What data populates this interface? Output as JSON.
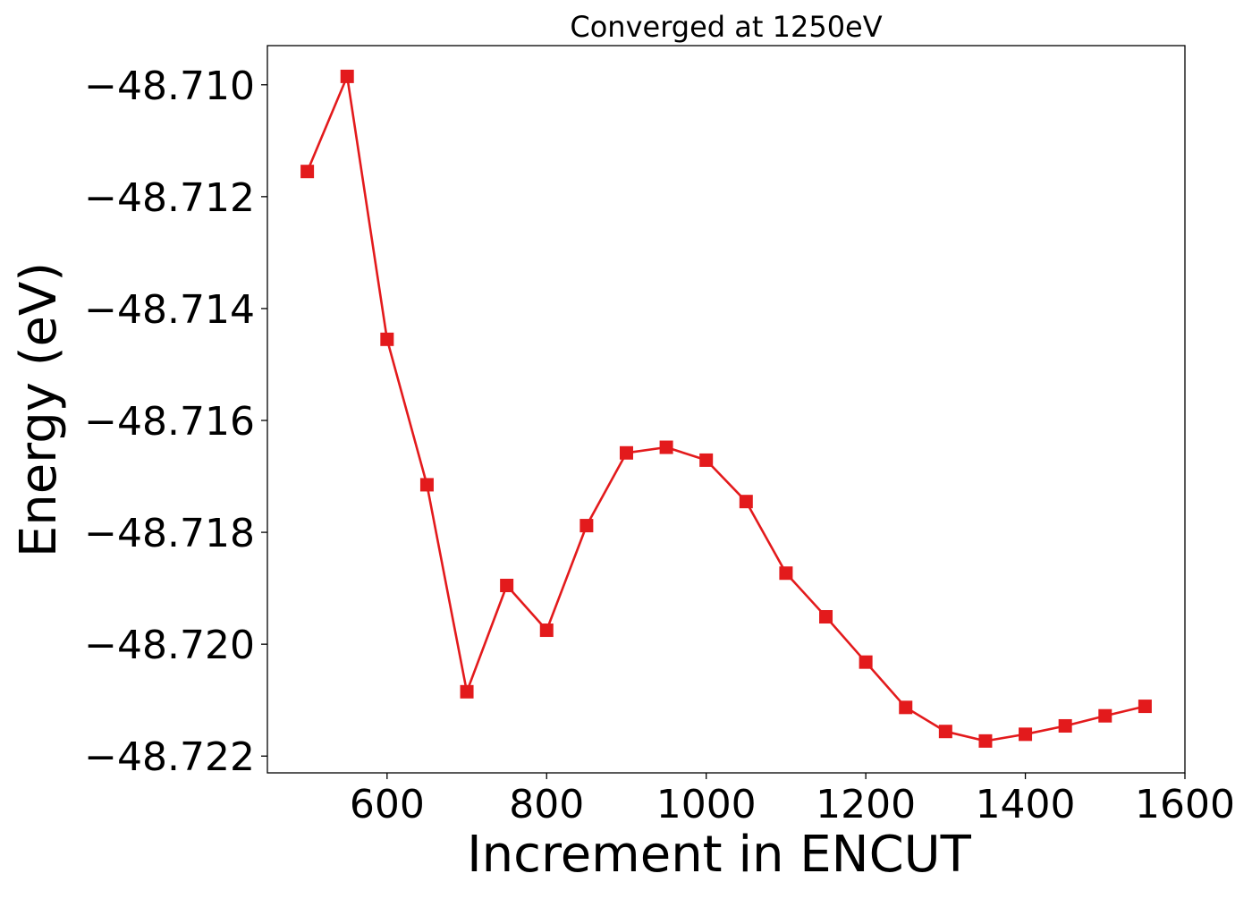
{
  "chart_data": {
    "type": "line",
    "title": "Converged at 1250eV",
    "xlabel": "Increment in ENCUT",
    "ylabel": "Energy (eV)",
    "xlim": [
      450,
      1600
    ],
    "ylim": [
      -48.7223,
      -48.7093
    ],
    "xticks": [
      600,
      800,
      1000,
      1200,
      1400,
      1600
    ],
    "yticks": [
      -48.71,
      -48.712,
      -48.714,
      -48.716,
      -48.718,
      -48.72,
      -48.722
    ],
    "ytick_labels": [
      "−48.710",
      "−48.712",
      "−48.714",
      "−48.716",
      "−48.718",
      "−48.720",
      "−48.722"
    ],
    "grid": false,
    "legend": "none",
    "marker": "square",
    "color": "#e31a1c",
    "series": [
      {
        "x": [
          500,
          550,
          600,
          650,
          700,
          750,
          800,
          850,
          900,
          950,
          1000,
          1050,
          1100,
          1150,
          1200,
          1250,
          1300,
          1350,
          1400,
          1450,
          1500,
          1550
        ],
        "y": [
          -48.71155,
          -48.70985,
          -48.71455,
          -48.71715,
          -48.72085,
          -48.71895,
          -48.71975,
          -48.71788,
          -48.71658,
          -48.71648,
          -48.71671,
          -48.71745,
          -48.71873,
          -48.71951,
          -48.72032,
          -48.72113,
          -48.72156,
          -48.72173,
          -48.72161,
          -48.72146,
          -48.72128,
          -48.72111
        ]
      }
    ]
  }
}
